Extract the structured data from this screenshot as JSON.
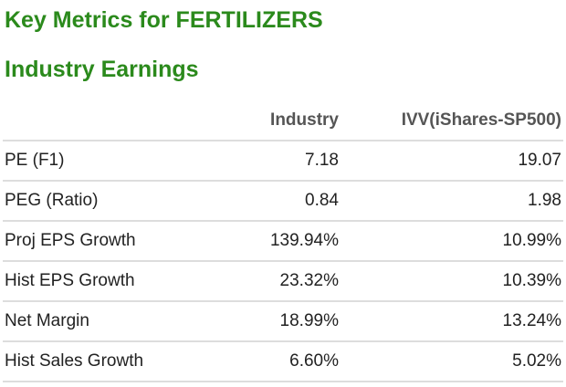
{
  "title": "Key Metrics for FERTILIZERS",
  "subtitle": "Industry Earnings",
  "columns": [
    "",
    "Industry",
    "IVV(iShares-SP500)"
  ],
  "rows": [
    {
      "label": "PE (F1)",
      "industry": "7.18",
      "ivv": "19.07"
    },
    {
      "label": "PEG (Ratio)",
      "industry": "0.84",
      "ivv": "1.98"
    },
    {
      "label": "Proj EPS Growth",
      "industry": "139.94%",
      "ivv": "10.99%"
    },
    {
      "label": "Hist EPS Growth",
      "industry": "23.32%",
      "ivv": "10.39%"
    },
    {
      "label": "Net Margin",
      "industry": "18.99%",
      "ivv": "13.24%"
    },
    {
      "label": "Hist Sales Growth",
      "industry": "6.60%",
      "ivv": "5.02%"
    }
  ]
}
